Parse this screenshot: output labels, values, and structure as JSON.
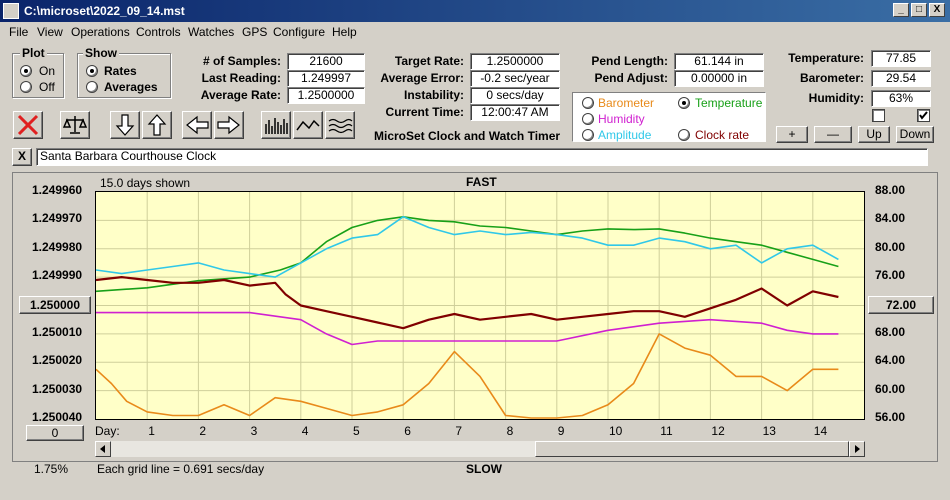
{
  "window": {
    "title": "C:\\microset\\2022_09_14.mst",
    "min": "_",
    "max": "□",
    "close": "X"
  },
  "menu": [
    "File",
    "View",
    "Operations",
    "Controls",
    "Watches",
    "GPS",
    "Configure",
    "Help"
  ],
  "plot_group": {
    "title": "Plot",
    "options": [
      {
        "label": "On",
        "selected": true
      },
      {
        "label": "Off",
        "selected": false
      }
    ]
  },
  "show_group": {
    "title": "Show",
    "options": [
      {
        "label": "Rates",
        "selected": true
      },
      {
        "label": "Averages",
        "selected": false
      }
    ]
  },
  "stats": {
    "samples_label": "# of Samples:",
    "samples": "21600",
    "last_label": "Last Reading:",
    "last": "1.249997",
    "avg_label": "Average Rate:",
    "avg": "1.2500000"
  },
  "rate": {
    "target_label": "Target Rate:",
    "target": "1.2500000",
    "error_label": "Average Error:",
    "error": "-0.2 sec/year",
    "instab_label": "Instability:",
    "instab": "0 secs/day",
    "time_label": "Current Time:",
    "time": "12:00:47 AM",
    "app_name": "MicroSet Clock and Watch Timer"
  },
  "pend": {
    "length_label": "Pend Length:",
    "length": "61.144 in",
    "adjust_label": "Pend Adjust:",
    "adjust": "0.00000 in"
  },
  "sensor_select": [
    {
      "label": "Barometer",
      "selected": false,
      "color": "#e88a1a"
    },
    {
      "label": "Temperature",
      "selected": true,
      "color": "#18a018"
    },
    {
      "label": "Humidity",
      "selected": false,
      "color": "#d020d0"
    },
    {
      "label": "Amplitude",
      "selected": false,
      "color": "#30c8e8"
    },
    {
      "label": "Clock rate",
      "selected": false,
      "color": "#800000"
    }
  ],
  "env": {
    "temp_label": "Temperature:",
    "temp": "77.85",
    "baro_label": "Barometer:",
    "baro": "29.54",
    "hum_label": "Humidity:",
    "hum": "63%",
    "check1": false,
    "check2": true
  },
  "range_buttons": {
    "plus": "+",
    "minus": "—",
    "up": "Up",
    "down": "Down"
  },
  "clock_close": "X",
  "clock_name": "Santa Barbara Courthouse Clock",
  "chart_data": {
    "type": "line",
    "title": "FAST",
    "bottom_title": "SLOW",
    "days_shown": "15.0 days shown",
    "grid_note": "Each grid line = 0.691 secs/day",
    "left_percent": "1.75%",
    "left_center_button": "1.250000",
    "left_bottom_button": "0",
    "right_center_button": "72.00",
    "day_label": "Day:",
    "x_ticks": [
      "1",
      "2",
      "3",
      "4",
      "5",
      "6",
      "7",
      "8",
      "9",
      "10",
      "11",
      "12",
      "13",
      "14"
    ],
    "y_left_ticks": [
      "1.249960",
      "1.249970",
      "1.249980",
      "1.249990",
      "1.250010",
      "1.250020",
      "1.250030",
      "1.250040"
    ],
    "y_right_ticks": [
      "88.00",
      "84.00",
      "80.00",
      "76.00",
      "68.00",
      "64.00",
      "60.00",
      "56.00"
    ],
    "xlim": [
      0,
      15
    ],
    "ylim_left": [
      1.24996,
      1.25004
    ],
    "ylim_right": [
      56,
      88
    ],
    "grid": true,
    "series": [
      {
        "color": "#18a018",
        "axis": "right",
        "x": [
          0,
          1,
          2,
          3,
          3.6,
          4,
          4.5,
          5,
          5.5,
          6,
          6.5,
          7,
          7.5,
          8,
          8.5,
          9,
          9.5,
          10,
          10.5,
          11,
          11.5,
          12,
          12.5,
          13,
          13.5,
          14,
          14.5
        ],
        "y": [
          74,
          74.5,
          75.5,
          76,
          77,
          78,
          81,
          83,
          84,
          84.5,
          84,
          83.8,
          83.2,
          83,
          82.5,
          82,
          82.5,
          82.8,
          82.7,
          82.8,
          82.2,
          81.5,
          81,
          80.5,
          79.5,
          78.5,
          77.5
        ]
      },
      {
        "color": "#30c8e8",
        "axis": "right",
        "x": [
          0,
          0.5,
          1,
          1.5,
          2,
          2.5,
          3,
          3.5,
          4,
          4.5,
          5,
          5.5,
          6,
          6.5,
          7,
          7.5,
          8,
          8.5,
          9,
          9.5,
          10,
          10.5,
          11,
          11.5,
          12,
          12.5,
          13,
          13.5,
          14,
          14.5
        ],
        "y": [
          77,
          76.5,
          77,
          77.5,
          78,
          77,
          76.5,
          76,
          78,
          80,
          81.5,
          82,
          84.5,
          83,
          82,
          82.5,
          82,
          82.3,
          82,
          81.5,
          80.5,
          80.5,
          81.5,
          81,
          80,
          80.5,
          78,
          80,
          80.5,
          78.5
        ]
      },
      {
        "color": "#800000",
        "axis": "left",
        "x": [
          0,
          0.5,
          1,
          1.5,
          2,
          2.5,
          3,
          3.5,
          3.7,
          4,
          4.5,
          5,
          5.5,
          6,
          6.5,
          7,
          7.5,
          8,
          8.5,
          9,
          9.5,
          10,
          10.5,
          11,
          11.5,
          12,
          12.5,
          13,
          13.5,
          14,
          14.5
        ],
        "y": [
          1.249991,
          1.24999,
          1.249991,
          1.249992,
          1.249992,
          1.249991,
          1.249993,
          1.249992,
          1.249996,
          1.25,
          1.250002,
          1.250004,
          1.250006,
          1.250008,
          1.250005,
          1.250003,
          1.250005,
          1.250004,
          1.250003,
          1.250005,
          1.250004,
          1.250003,
          1.250002,
          1.250002,
          1.250004,
          1.250001,
          1.249998,
          1.249994,
          1.25,
          1.249995,
          1.249997
        ]
      },
      {
        "color": "#d020d0",
        "axis": "right",
        "x": [
          0,
          1,
          2,
          3,
          4,
          4.5,
          5,
          5.5,
          6,
          7,
          8,
          9,
          10,
          11,
          12,
          13,
          13.5,
          14,
          14.5
        ],
        "y": [
          71,
          71,
          71,
          71,
          70,
          68,
          66.5,
          67,
          67,
          67,
          67,
          67,
          68.5,
          69.5,
          70,
          69.5,
          68.5,
          68,
          68
        ]
      },
      {
        "color": "#e88a1a",
        "axis": "right",
        "x": [
          0,
          0.3,
          0.6,
          1,
          1.5,
          2,
          2.5,
          3,
          3.5,
          4,
          4.5,
          5,
          5.5,
          6,
          6.5,
          7,
          7.5,
          8,
          8.5,
          9,
          9.5,
          10,
          10.5,
          11,
          11.5,
          12,
          12.5,
          13,
          13.5,
          14,
          14.5
        ],
        "y": [
          63,
          61,
          58.5,
          57,
          56.5,
          56.5,
          58,
          56.5,
          59,
          58.5,
          57.5,
          56.5,
          57,
          58,
          61,
          65.5,
          62,
          56.5,
          56,
          56,
          56.5,
          58,
          61,
          68,
          66,
          65,
          62,
          62,
          60,
          63,
          63
        ]
      }
    ]
  }
}
